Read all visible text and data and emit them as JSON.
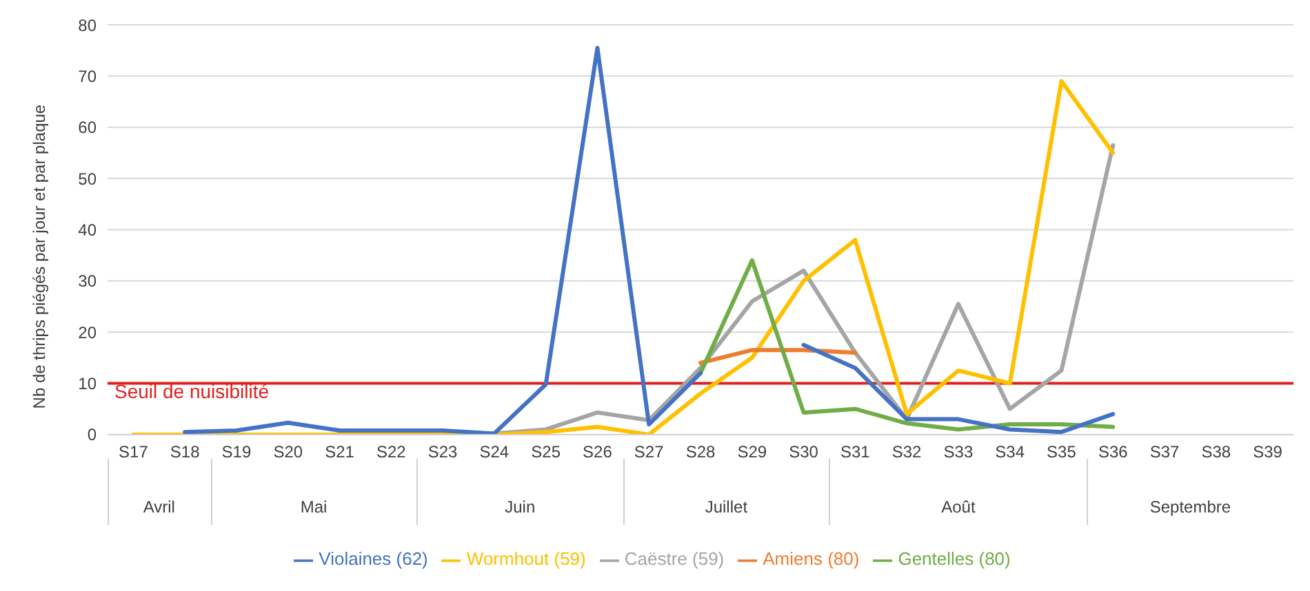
{
  "chart_data": {
    "type": "line",
    "ylabel": "Nb de thrips piégés par jour et par plaque",
    "categories": [
      "S17",
      "S18",
      "S19",
      "S20",
      "S21",
      "S22",
      "S23",
      "S24",
      "S25",
      "S26",
      "S27",
      "S28",
      "S29",
      "S30",
      "S31",
      "S32",
      "S33",
      "S34",
      "S35",
      "S36",
      "S37",
      "S38",
      "S39"
    ],
    "series": [
      {
        "name": "Violaines (62)",
        "color": "#4472c4",
        "values": [
          null,
          0.5,
          0.8,
          2.3,
          0.8,
          0.8,
          0.8,
          0.2,
          9.8,
          75.5,
          2,
          12,
          null,
          17.5,
          13,
          3,
          3,
          1,
          0.5,
          4,
          null,
          null,
          null
        ]
      },
      {
        "name": "Wormhout (59)",
        "color": "#ffc000",
        "values": [
          0,
          0,
          0,
          0,
          0,
          0,
          0,
          0,
          0.5,
          1.5,
          0,
          8,
          15,
          30,
          38,
          4,
          12.5,
          10,
          69,
          55,
          null,
          null,
          null
        ]
      },
      {
        "name": "Caëstre (59)",
        "color": "#a5a5a5",
        "values": [
          null,
          null,
          null,
          null,
          0.5,
          0.5,
          0.5,
          0.2,
          1,
          4.3,
          2.8,
          13,
          26,
          32,
          16,
          3,
          25.5,
          5,
          12.5,
          56.5,
          null,
          null,
          null
        ]
      },
      {
        "name": "Amiens (80)",
        "color": "#ed7d31",
        "values": [
          null,
          null,
          null,
          null,
          null,
          null,
          null,
          null,
          null,
          null,
          null,
          14,
          16.5,
          16.5,
          16,
          null,
          null,
          null,
          null,
          null,
          null,
          null,
          null
        ]
      },
      {
        "name": "Gentelles (80)",
        "color": "#70ad47",
        "values": [
          null,
          null,
          null,
          null,
          null,
          null,
          null,
          null,
          null,
          null,
          null,
          12,
          34,
          4.3,
          5,
          2.2,
          1,
          2,
          2,
          1.5,
          null,
          null,
          null
        ]
      }
    ],
    "ylim": [
      0,
      80
    ],
    "yticks": [
      0,
      10,
      20,
      30,
      40,
      50,
      60,
      70,
      80
    ],
    "grid": "y",
    "legend": "bottom",
    "marker": "none",
    "line_style": "solid",
    "ref_lines": [
      {
        "axis": "y",
        "value": 10,
        "label": "Seuil de nuisibilité",
        "color": "#e02020"
      }
    ],
    "annotations": [
      "Avril",
      "Mai",
      "Juin",
      "Juillet",
      "Août",
      "Septembre"
    ]
  }
}
